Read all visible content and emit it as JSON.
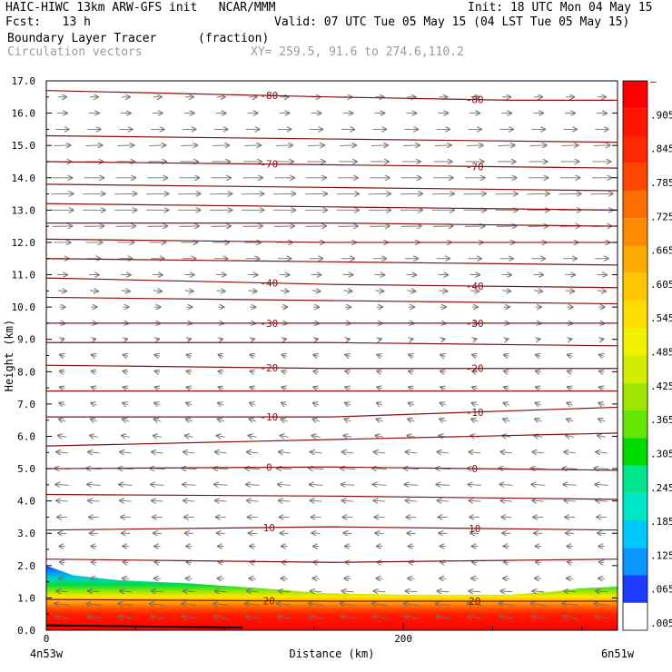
{
  "header": {
    "left_line1": "HAIC-HIWC 13km ARW-GFS init   NCAR/MMM",
    "left_line2": "Fcst:   13 h",
    "right_line1": "Init: 18 UTC Mon 04 May 15",
    "right_line2": "Valid: 07 UTC Tue 05 May 15 (04 LST Tue 05 May 15)",
    "field_name": "Boundary Layer Tracer",
    "field_units": "(fraction)",
    "vector_name": "Circulation vectors",
    "xy_info": "XY= 259.5, 91.6 to 274.6,110.2"
  },
  "chart_data": {
    "type": "heatmap",
    "ylabel": "Height (km)",
    "xlabel": "Distance (km)",
    "x_ticks": [
      "0",
      "200"
    ],
    "x_end_labels": [
      "4n53w",
      "6n51w"
    ],
    "xlim": [
      0,
      320
    ],
    "ylim": [
      0,
      17
    ],
    "y_ticks": [
      "0.0",
      "1.0",
      "2.0",
      "3.0",
      "4.0",
      "5.0",
      "6.0",
      "7.0",
      "8.0",
      "9.0",
      "10.0",
      "11.0",
      "12.0",
      "13.0",
      "14.0",
      "15.0",
      "16.0",
      "17.0"
    ],
    "colorbar": {
      "labels": [
        ".005",
        ".065",
        ".125",
        ".185",
        ".245",
        ".305",
        ".365",
        ".425",
        ".485",
        ".545",
        ".605",
        ".665",
        ".725",
        ".785",
        ".845",
        ".905",
        "–"
      ],
      "colors": [
        "#ffffff",
        "#1e3cff",
        "#0a96ff",
        "#00c8ff",
        "#00e6c8",
        "#00e68c",
        "#00dc00",
        "#64e600",
        "#a0e600",
        "#d2ec00",
        "#f0f000",
        "#ffdc00",
        "#ffc800",
        "#ffaa00",
        "#ff8c00",
        "#ff6e00",
        "#ff4600",
        "#ff2800",
        "#ff1400",
        "#ff0000"
      ]
    },
    "tracer_top_km": [
      [
        0,
        2.0
      ],
      [
        15,
        1.7
      ],
      [
        40,
        1.55
      ],
      [
        80,
        1.45
      ],
      [
        120,
        1.3
      ],
      [
        155,
        1.15
      ],
      [
        200,
        1.1
      ],
      [
        260,
        1.1
      ],
      [
        285,
        1.2
      ],
      [
        300,
        1.3
      ],
      [
        320,
        1.35
      ]
    ],
    "isotherms": [
      {
        "label": "-80",
        "heights_km": [
          [
            0,
            16.7
          ],
          [
            80,
            16.6
          ],
          [
            160,
            16.5
          ],
          [
            260,
            16.4
          ],
          [
            320,
            16.4
          ]
        ]
      },
      {
        "label": "",
        "heights_km": [
          [
            0,
            15.3
          ],
          [
            160,
            15.2
          ],
          [
            320,
            15.1
          ]
        ]
      },
      {
        "label": "-70",
        "heights_km": [
          [
            0,
            14.5
          ],
          [
            160,
            14.4
          ],
          [
            320,
            14.3
          ]
        ]
      },
      {
        "label": "",
        "heights_km": [
          [
            0,
            13.8
          ],
          [
            160,
            13.7
          ],
          [
            320,
            13.6
          ]
        ]
      },
      {
        "label": "",
        "heights_km": [
          [
            0,
            13.2
          ],
          [
            160,
            13.1
          ],
          [
            320,
            13.0
          ]
        ]
      },
      {
        "label": "",
        "heights_km": [
          [
            0,
            12.6
          ],
          [
            160,
            12.6
          ],
          [
            320,
            12.5
          ]
        ]
      },
      {
        "label": "",
        "heights_km": [
          [
            0,
            12.1
          ],
          [
            160,
            12.0
          ],
          [
            320,
            12.0
          ]
        ]
      },
      {
        "label": "",
        "heights_km": [
          [
            0,
            11.5
          ],
          [
            160,
            11.4
          ],
          [
            320,
            11.3
          ]
        ]
      },
      {
        "label": "-40",
        "heights_km": [
          [
            0,
            10.9
          ],
          [
            160,
            10.7
          ],
          [
            320,
            10.6
          ]
        ]
      },
      {
        "label": "",
        "heights_km": [
          [
            0,
            10.3
          ],
          [
            160,
            10.2
          ],
          [
            320,
            10.1
          ]
        ]
      },
      {
        "label": "-30",
        "heights_km": [
          [
            0,
            9.5
          ],
          [
            160,
            9.5
          ],
          [
            320,
            9.5
          ]
        ]
      },
      {
        "label": "",
        "heights_km": [
          [
            0,
            8.9
          ],
          [
            160,
            8.9
          ],
          [
            320,
            8.8
          ]
        ]
      },
      {
        "label": "-20",
        "heights_km": [
          [
            0,
            8.2
          ],
          [
            160,
            8.1
          ],
          [
            320,
            8.1
          ]
        ]
      },
      {
        "label": "",
        "heights_km": [
          [
            0,
            7.4
          ],
          [
            160,
            7.4
          ],
          [
            320,
            7.4
          ]
        ]
      },
      {
        "label": "-10",
        "heights_km": [
          [
            0,
            6.6
          ],
          [
            160,
            6.6
          ],
          [
            320,
            6.9
          ]
        ]
      },
      {
        "label": "",
        "heights_km": [
          [
            0,
            5.7
          ],
          [
            160,
            5.9
          ],
          [
            320,
            6.1
          ]
        ]
      },
      {
        "label": "0",
        "heights_km": [
          [
            0,
            5.0
          ],
          [
            160,
            5.05
          ],
          [
            320,
            4.95
          ]
        ]
      },
      {
        "label": "",
        "heights_km": [
          [
            0,
            4.2
          ],
          [
            160,
            4.15
          ],
          [
            320,
            4.05
          ]
        ]
      },
      {
        "label": "10",
        "heights_km": [
          [
            0,
            3.1
          ],
          [
            160,
            3.2
          ],
          [
            320,
            3.1
          ]
        ]
      },
      {
        "label": "",
        "heights_km": [
          [
            0,
            2.2
          ],
          [
            160,
            2.1
          ],
          [
            320,
            2.2
          ]
        ]
      },
      {
        "label": "20",
        "heights_km": [
          [
            0,
            0.95
          ],
          [
            160,
            0.9
          ],
          [
            320,
            0.9
          ]
        ]
      }
    ],
    "wind_profile": [
      {
        "z": 0.4,
        "u": -0.8,
        "w": 0.25
      },
      {
        "z": 0.8,
        "u": -0.9,
        "w": 0.2
      },
      {
        "z": 1.2,
        "u": -0.7,
        "w": 0.1
      },
      {
        "z": 1.6,
        "u": -0.4,
        "w": 0.05
      },
      {
        "z": 2.1,
        "u": -0.3,
        "w": 0.1
      },
      {
        "z": 2.6,
        "u": -0.35,
        "w": 0.0
      },
      {
        "z": 3.0,
        "u": -0.5,
        "w": 0.05
      },
      {
        "z": 3.5,
        "u": -0.6,
        "w": 0.0
      },
      {
        "z": 4.0,
        "u": -0.7,
        "w": 0.1
      },
      {
        "z": 4.5,
        "u": -0.8,
        "w": 0.1
      },
      {
        "z": 5.0,
        "u": -0.9,
        "w": 0.1
      },
      {
        "z": 5.5,
        "u": -0.7,
        "w": 0.15
      },
      {
        "z": 6.0,
        "u": -0.5,
        "w": 0.2
      },
      {
        "z": 6.5,
        "u": -0.4,
        "w": 0.3
      },
      {
        "z": 7.0,
        "u": -0.35,
        "w": 0.3
      },
      {
        "z": 7.5,
        "u": -0.3,
        "w": 0.2
      },
      {
        "z": 8.0,
        "u": -0.3,
        "w": 0.15
      },
      {
        "z": 8.5,
        "u": -0.3,
        "w": 0.2
      },
      {
        "z": 9.0,
        "u": 0.2,
        "w": 0.1
      },
      {
        "z": 9.5,
        "u": 0.3,
        "w": -0.1
      },
      {
        "z": 10.0,
        "u": 0.35,
        "w": 0.0
      },
      {
        "z": 10.5,
        "u": 0.5,
        "w": -0.1
      },
      {
        "z": 11.0,
        "u": 0.6,
        "w": -0.05
      },
      {
        "z": 11.5,
        "u": 0.8,
        "w": 0.0
      },
      {
        "z": 12.0,
        "u": 1.0,
        "w": 0.0
      },
      {
        "z": 12.5,
        "u": 1.2,
        "w": 0.05
      },
      {
        "z": 13.0,
        "u": 1.35,
        "w": 0.0
      },
      {
        "z": 13.5,
        "u": 1.35,
        "w": 0.05
      },
      {
        "z": 14.0,
        "u": 1.2,
        "w": 0.0
      },
      {
        "z": 14.5,
        "u": 1.1,
        "w": 0.0
      },
      {
        "z": 15.0,
        "u": 1.0,
        "w": 0.05
      },
      {
        "z": 15.5,
        "u": 0.8,
        "w": 0.0
      },
      {
        "z": 16.0,
        "u": 0.6,
        "w": 0.0
      },
      {
        "z": 16.5,
        "u": 0.5,
        "w": 0.0
      }
    ],
    "colors": {
      "isotherm": "#8b1010",
      "vector": "#707070",
      "text_gray": "#9a9a9a",
      "tracer_edge": "#1e3cff",
      "tracer_core": "#ff0000"
    }
  }
}
